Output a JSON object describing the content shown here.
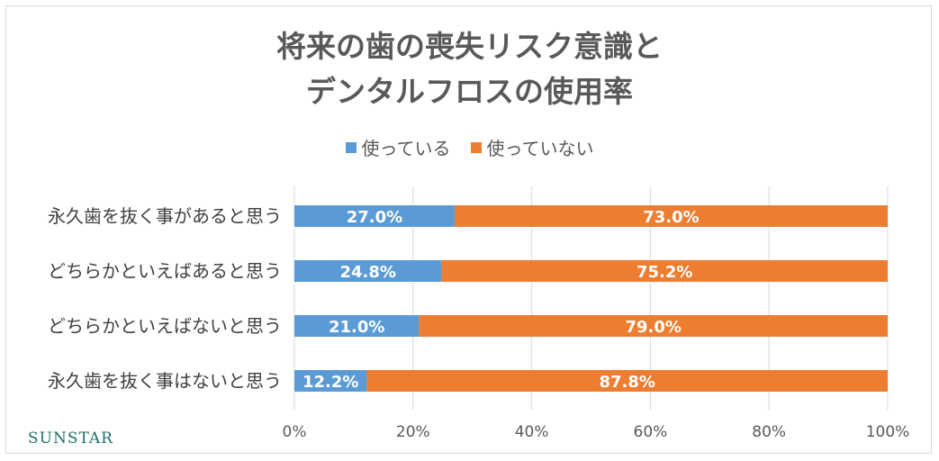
{
  "chart_data": {
    "type": "bar",
    "orientation": "horizontal",
    "stacked": true,
    "title_lines": [
      "将来の歯の喪失リスク意識と",
      "デンタルフロスの使用率"
    ],
    "categories": [
      "永久歯を抜く事があると思う",
      "どちらかといえばあると思う",
      "どちらかといえばないと思う",
      "永久歯を抜く事はないと思う"
    ],
    "series": [
      {
        "name": "使っている",
        "color": "#5b9bd5",
        "values": [
          27.0,
          24.8,
          21.0,
          12.2
        ],
        "labels": [
          "27.0%",
          "24.8%",
          "21.0%",
          "12.2%"
        ]
      },
      {
        "name": "使っていない",
        "color": "#ed7d31",
        "values": [
          73.0,
          75.2,
          79.0,
          87.8
        ],
        "labels": [
          "73.0%",
          "75.2%",
          "79.0%",
          "87.8%"
        ]
      }
    ],
    "xlim": [
      0,
      100
    ],
    "xticks": [
      "0%",
      "20%",
      "40%",
      "60%",
      "80%",
      "100%"
    ],
    "grid": true,
    "legend_position": "top"
  },
  "logo": "SUNSTAR"
}
